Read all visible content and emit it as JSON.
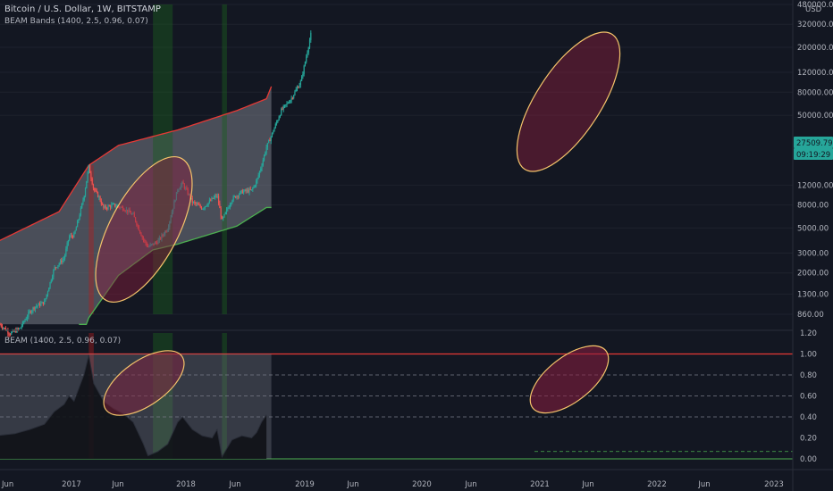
{
  "header": {
    "symbol_title": "Bitcoin / U.S. Dollar, 1W, BITSTAMP",
    "indicator_label": "BEAM Bands (1400, 2.5, 0.96, 0.07)"
  },
  "lower_pane": {
    "indicator_label": "BEAM (1400, 2.5, 0.96, 0.07)"
  },
  "price_axis": {
    "currency": "USD",
    "last_price": "27509.79",
    "countdown": "09:19:29",
    "badge_color": "#26a69a"
  },
  "colors": {
    "background": "#131722",
    "band_upper": "#e53935",
    "band_lower": "#4caf50",
    "band_fill": "#787b86",
    "ellipse": "#f5c46b",
    "ellipse_fill": "#8b1e3f",
    "candle_up": "#26a69a",
    "candle_down": "#ef5350",
    "green_zone": "#1b5e20",
    "red_zone": "#b71c1c"
  },
  "chart_data": [
    {
      "type": "candlestick",
      "title": "Bitcoin / U.S. Dollar, 1W, BITSTAMP",
      "y_scale": "log",
      "y_ticks": [
        860,
        1300,
        2000,
        3000,
        5000,
        8000,
        12000,
        50000,
        80000,
        120000,
        200000,
        320000,
        480000
      ],
      "y_tick_labels": [
        "860.00",
        "1300.00",
        "2000.00",
        "3000.00",
        "5000.00",
        "8000.00",
        "12000.00",
        "50000.00",
        "80000.00",
        "120000.00",
        "200000.00",
        "320000.00",
        "480000.00"
      ],
      "x_ticks": [
        "Jun",
        "2017",
        "Jun",
        "2018",
        "Jun",
        "2019",
        "Jun",
        "2020",
        "Jun",
        "2021",
        "Jun",
        "2022",
        "Jun",
        "2023"
      ],
      "price_path": [
        [
          "2016-06",
          700
        ],
        [
          "2016-08",
          580
        ],
        [
          "2016-10",
          640
        ],
        [
          "2016-12",
          900
        ],
        [
          "2017-01",
          1000
        ],
        [
          "2017-03",
          1100
        ],
        [
          "2017-05",
          2200
        ],
        [
          "2017-07",
          2700
        ],
        [
          "2017-08",
          4200
        ],
        [
          "2017-09",
          4300
        ],
        [
          "2017-10",
          6200
        ],
        [
          "2017-11",
          9500
        ],
        [
          "2017-12",
          17500
        ],
        [
          "2018-01",
          11000
        ],
        [
          "2018-02",
          9500
        ],
        [
          "2018-03",
          7500
        ],
        [
          "2018-05",
          8000
        ],
        [
          "2018-07",
          7500
        ],
        [
          "2018-09",
          6500
        ],
        [
          "2018-11",
          4000
        ],
        [
          "2018-12",
          3400
        ],
        [
          "2019-02",
          3800
        ],
        [
          "2019-04",
          5000
        ],
        [
          "2019-06",
          11000
        ],
        [
          "2019-07",
          12500
        ],
        [
          "2019-09",
          8500
        ],
        [
          "2019-11",
          7500
        ],
        [
          "2020-01",
          9000
        ],
        [
          "2020-02",
          9800
        ],
        [
          "2020-03",
          5800
        ],
        [
          "2020-05",
          9000
        ],
        [
          "2020-07",
          10500
        ],
        [
          "2020-09",
          10800
        ],
        [
          "2020-10",
          13000
        ],
        [
          "2020-11",
          18000
        ],
        [
          "2020-12",
          26000
        ],
        [
          "2021-01",
          33000
        ],
        [
          "2021-03",
          55000
        ],
        [
          "2021-05",
          70000
        ],
        [
          "2021-07",
          100000
        ],
        [
          "2021-08",
          160000
        ],
        [
          "2021-09",
          260000
        ]
      ],
      "upper_band": [
        [
          "2016-05",
          3700
        ],
        [
          "2017-06",
          7000
        ],
        [
          "2017-12",
          18000
        ],
        [
          "2018-06",
          27000
        ],
        [
          "2019-06",
          37000
        ],
        [
          "2020-06",
          55000
        ],
        [
          "2020-12",
          70000
        ],
        [
          "2021-01",
          90000
        ]
      ],
      "lower_band": [
        [
          "2017-12",
          800
        ],
        [
          "2018-06",
          1900
        ],
        [
          "2019-01",
          3200
        ],
        [
          "2019-06",
          3600
        ],
        [
          "2020-06",
          5200
        ],
        [
          "2020-12",
          7600
        ]
      ],
      "green_zones": [
        [
          "2019-01",
          "2019-05"
        ],
        [
          "2020-03",
          "2020-04"
        ]
      ],
      "red_zones": [
        [
          "2017-12",
          "2018-01"
        ]
      ]
    },
    {
      "type": "area",
      "title": "BEAM (1400, 2.5, 0.96, 0.07)",
      "ylim": [
        0,
        1.2
      ],
      "y_tick_labels": [
        "0.00",
        "0.20",
        "0.40",
        "0.60",
        "0.80",
        "1.00",
        "1.20"
      ],
      "horizontal_levels": [
        1.0,
        0.8,
        0.6,
        0.4
      ],
      "lower_levels": [
        0.07,
        0.0
      ],
      "values": [
        [
          "2016-05",
          0.22
        ],
        [
          "2016-09",
          0.24
        ],
        [
          "2016-12",
          0.28
        ],
        [
          "2017-03",
          0.33
        ],
        [
          "2017-05",
          0.45
        ],
        [
          "2017-07",
          0.52
        ],
        [
          "2017-08",
          0.6
        ],
        [
          "2017-09",
          0.55
        ],
        [
          "2017-11",
          0.8
        ],
        [
          "2017-12",
          0.99
        ],
        [
          "2018-01",
          0.72
        ],
        [
          "2018-03",
          0.55
        ],
        [
          "2018-05",
          0.48
        ],
        [
          "2018-07",
          0.43
        ],
        [
          "2018-09",
          0.35
        ],
        [
          "2018-11",
          0.15
        ],
        [
          "2018-12",
          0.03
        ],
        [
          "2019-02",
          0.07
        ],
        [
          "2019-04",
          0.14
        ],
        [
          "2019-06",
          0.35
        ],
        [
          "2019-07",
          0.4
        ],
        [
          "2019-09",
          0.28
        ],
        [
          "2019-11",
          0.22
        ],
        [
          "2020-01",
          0.2
        ],
        [
          "2020-02",
          0.28
        ],
        [
          "2020-03",
          0.02
        ],
        [
          "2020-05",
          0.18
        ],
        [
          "2020-07",
          0.22
        ],
        [
          "2020-09",
          0.2
        ],
        [
          "2020-10",
          0.25
        ],
        [
          "2020-11",
          0.35
        ],
        [
          "2020-12",
          0.42
        ]
      ],
      "green_zones": [
        [
          "2019-01",
          "2019-05"
        ],
        [
          "2020-03",
          "2020-04"
        ]
      ],
      "red_zones": [
        [
          "2017-12",
          "2018-01"
        ]
      ]
    }
  ]
}
